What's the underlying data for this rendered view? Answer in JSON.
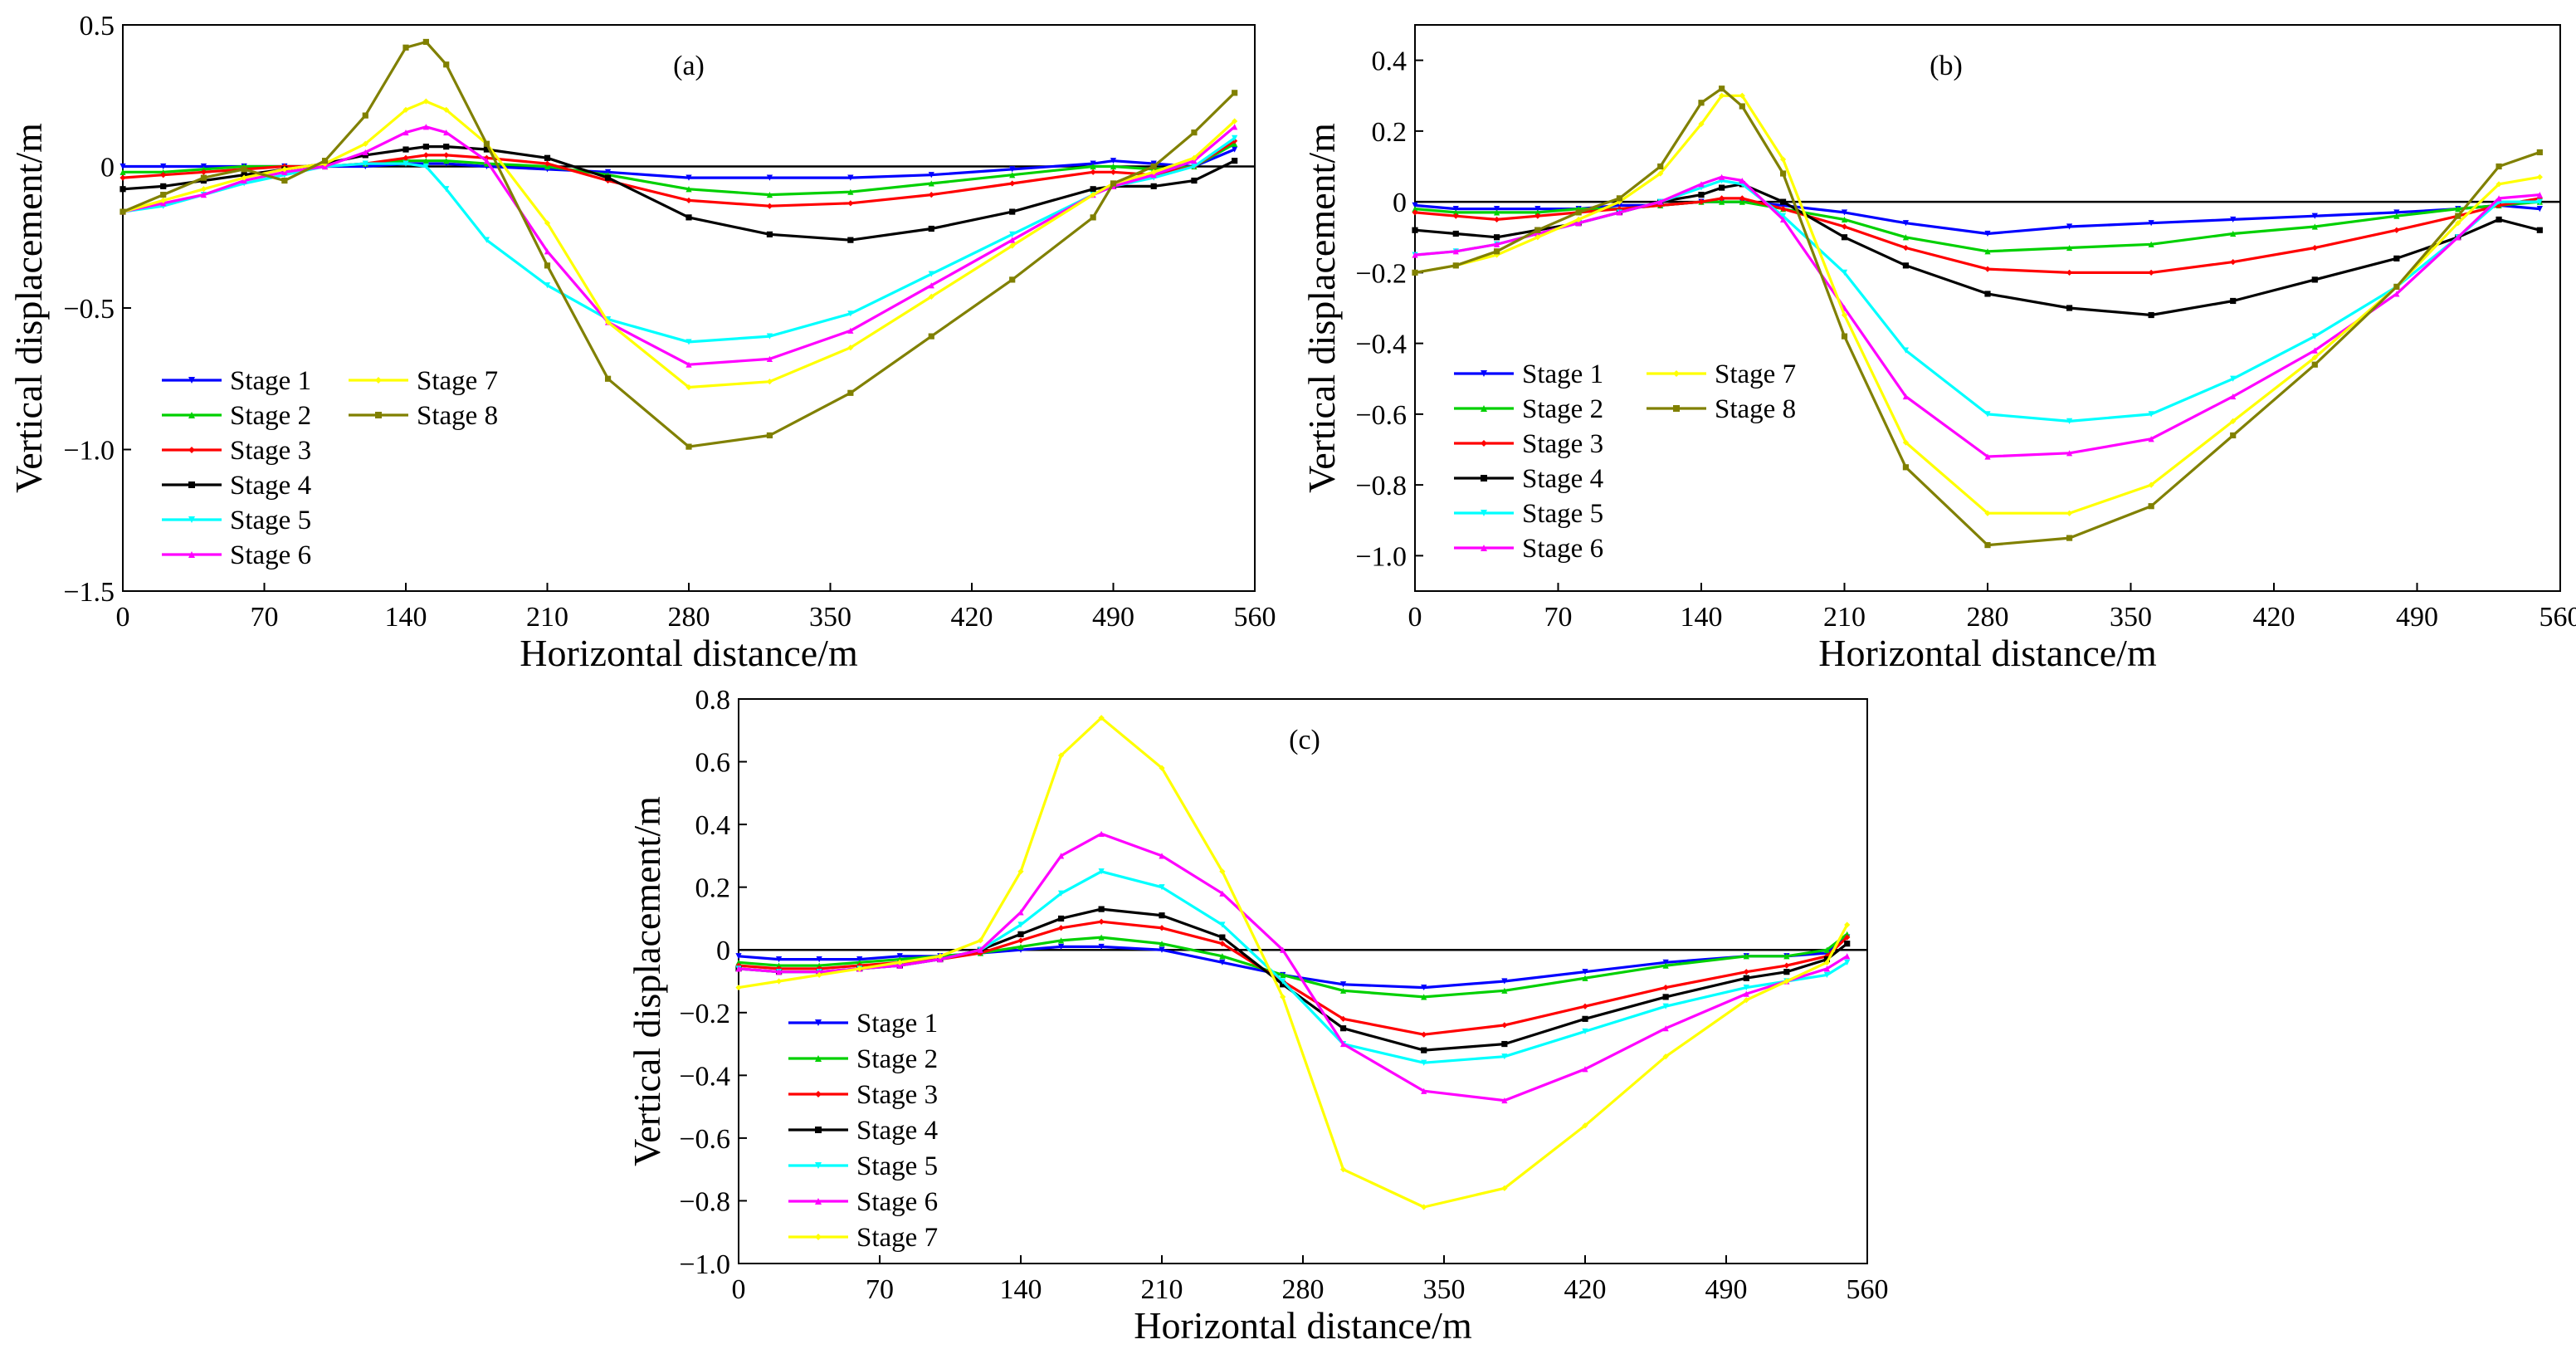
{
  "chart_data": [
    {
      "type": "line",
      "panel": "(a)",
      "xlabel": "Horizontal distance/m",
      "ylabel": "Vertical displacement/m",
      "xlim": [
        0,
        560
      ],
      "ylim": [
        -1.5,
        0.5
      ],
      "xticks": [
        0,
        70,
        140,
        210,
        280,
        350,
        420,
        490,
        560
      ],
      "yticks": [
        0.5,
        0,
        -0.5,
        -1.0,
        -1.5
      ],
      "ytick_labels": [
        "0.5",
        "0",
        "−0.5",
        "−1.0",
        "−1.5"
      ],
      "legend_columns": 2,
      "legend_position": "bottom-left",
      "x": [
        0,
        20,
        40,
        60,
        80,
        100,
        120,
        140,
        150,
        160,
        180,
        210,
        240,
        280,
        320,
        360,
        400,
        440,
        480,
        490,
        510,
        530,
        550
      ],
      "series": [
        {
          "name": "Stage 1",
          "color": "#0000ff",
          "values": [
            0.0,
            0.0,
            0.0,
            0.0,
            0.0,
            0.0,
            0.0,
            0.01,
            0.01,
            0.01,
            0.0,
            -0.01,
            -0.02,
            -0.04,
            -0.04,
            -0.04,
            -0.03,
            -0.01,
            0.01,
            0.02,
            0.01,
            0.0,
            0.06
          ]
        },
        {
          "name": "Stage 2",
          "color": "#00d000",
          "values": [
            -0.02,
            -0.02,
            -0.01,
            0.0,
            0.0,
            0.0,
            0.01,
            0.02,
            0.02,
            0.02,
            0.01,
            0.0,
            -0.03,
            -0.08,
            -0.1,
            -0.09,
            -0.06,
            -0.03,
            0.0,
            0.0,
            -0.01,
            0.0,
            0.08
          ]
        },
        {
          "name": "Stage 3",
          "color": "#ff0000",
          "values": [
            -0.04,
            -0.03,
            -0.02,
            -0.01,
            0.0,
            0.0,
            0.01,
            0.03,
            0.04,
            0.04,
            0.03,
            0.01,
            -0.05,
            -0.12,
            -0.14,
            -0.13,
            -0.1,
            -0.06,
            -0.02,
            -0.02,
            -0.03,
            0.0,
            0.09
          ]
        },
        {
          "name": "Stage 4",
          "color": "#000000",
          "values": [
            -0.08,
            -0.07,
            -0.05,
            -0.03,
            -0.01,
            0.01,
            0.04,
            0.06,
            0.07,
            0.07,
            0.06,
            0.03,
            -0.04,
            -0.18,
            -0.24,
            -0.26,
            -0.22,
            -0.16,
            -0.08,
            -0.07,
            -0.07,
            -0.05,
            0.02
          ]
        },
        {
          "name": "Stage 5",
          "color": "#00ffff",
          "values": [
            -0.16,
            -0.14,
            -0.1,
            -0.06,
            -0.03,
            0.0,
            0.01,
            0.01,
            0.0,
            -0.08,
            -0.26,
            -0.42,
            -0.54,
            -0.62,
            -0.6,
            -0.52,
            -0.38,
            -0.24,
            -0.1,
            -0.07,
            -0.04,
            0.0,
            0.1
          ]
        },
        {
          "name": "Stage 6",
          "color": "#ff00ff",
          "values": [
            -0.16,
            -0.13,
            -0.1,
            -0.05,
            -0.02,
            0.0,
            0.05,
            0.12,
            0.14,
            0.12,
            0.02,
            -0.3,
            -0.55,
            -0.7,
            -0.68,
            -0.58,
            -0.42,
            -0.26,
            -0.1,
            -0.07,
            -0.03,
            0.02,
            0.14
          ]
        },
        {
          "name": "Stage 7",
          "color": "#ffff00",
          "values": [
            -0.16,
            -0.12,
            -0.08,
            -0.04,
            -0.01,
            0.01,
            0.08,
            0.2,
            0.23,
            0.2,
            0.08,
            -0.2,
            -0.55,
            -0.78,
            -0.76,
            -0.64,
            -0.46,
            -0.28,
            -0.1,
            -0.06,
            -0.02,
            0.03,
            0.16
          ]
        },
        {
          "name": "Stage 8",
          "color": "#808000",
          "values": [
            -0.16,
            -0.1,
            -0.04,
            -0.01,
            -0.05,
            0.02,
            0.18,
            0.42,
            0.44,
            0.36,
            0.08,
            -0.35,
            -0.75,
            -0.99,
            -0.95,
            -0.8,
            -0.6,
            -0.4,
            -0.18,
            -0.06,
            0.0,
            0.12,
            0.26
          ]
        }
      ]
    },
    {
      "type": "line",
      "panel": "(b)",
      "xlabel": "Horizontal distance/m",
      "ylabel": "Vertical displacement/m",
      "xlim": [
        0,
        560
      ],
      "ylim": [
        -1.1,
        0.5
      ],
      "xticks": [
        0,
        70,
        140,
        210,
        280,
        350,
        420,
        490,
        560
      ],
      "yticks": [
        0.4,
        0.2,
        0,
        -0.2,
        -0.4,
        -0.6,
        -0.8,
        -1.0
      ],
      "ytick_labels": [
        "0.4",
        "0.2",
        "0",
        "−0.2",
        "−0.4",
        "−0.6",
        "−0.8",
        "−1.0"
      ],
      "legend_columns": 2,
      "legend_position": "bottom-left",
      "x": [
        0,
        20,
        40,
        60,
        80,
        100,
        120,
        140,
        150,
        160,
        180,
        210,
        240,
        280,
        320,
        360,
        400,
        440,
        480,
        510,
        530,
        550
      ],
      "series": [
        {
          "name": "Stage 1",
          "color": "#0000ff",
          "values": [
            -0.01,
            -0.02,
            -0.02,
            -0.02,
            -0.02,
            -0.01,
            -0.01,
            0.0,
            0.0,
            0.0,
            -0.01,
            -0.03,
            -0.06,
            -0.09,
            -0.07,
            -0.06,
            -0.05,
            -0.04,
            -0.03,
            -0.02,
            -0.01,
            -0.02
          ]
        },
        {
          "name": "Stage 2",
          "color": "#00d000",
          "values": [
            -0.02,
            -0.03,
            -0.03,
            -0.03,
            -0.02,
            -0.02,
            -0.01,
            0.0,
            0.0,
            0.0,
            -0.02,
            -0.05,
            -0.1,
            -0.14,
            -0.13,
            -0.12,
            -0.09,
            -0.07,
            -0.04,
            -0.02,
            -0.01,
            0.0
          ]
        },
        {
          "name": "Stage 3",
          "color": "#ff0000",
          "values": [
            -0.03,
            -0.04,
            -0.05,
            -0.04,
            -0.03,
            -0.02,
            -0.01,
            0.0,
            0.01,
            0.01,
            -0.02,
            -0.07,
            -0.13,
            -0.19,
            -0.2,
            -0.2,
            -0.17,
            -0.13,
            -0.08,
            -0.04,
            -0.01,
            0.01
          ]
        },
        {
          "name": "Stage 4",
          "color": "#000000",
          "values": [
            -0.08,
            -0.09,
            -0.1,
            -0.08,
            -0.06,
            -0.03,
            0.0,
            0.02,
            0.04,
            0.05,
            0.0,
            -0.1,
            -0.18,
            -0.26,
            -0.3,
            -0.32,
            -0.28,
            -0.22,
            -0.16,
            -0.1,
            -0.05,
            -0.08
          ]
        },
        {
          "name": "Stage 5",
          "color": "#00ffff",
          "values": [
            -0.15,
            -0.14,
            -0.12,
            -0.09,
            -0.06,
            -0.03,
            0.0,
            0.04,
            0.06,
            0.05,
            -0.04,
            -0.2,
            -0.42,
            -0.6,
            -0.62,
            -0.6,
            -0.5,
            -0.38,
            -0.24,
            -0.1,
            0.0,
            0.0
          ]
        },
        {
          "name": "Stage 6",
          "color": "#ff00ff",
          "values": [
            -0.15,
            -0.14,
            -0.12,
            -0.09,
            -0.06,
            -0.03,
            0.0,
            0.05,
            0.07,
            0.06,
            -0.05,
            -0.3,
            -0.55,
            -0.72,
            -0.71,
            -0.67,
            -0.55,
            -0.42,
            -0.26,
            -0.1,
            0.01,
            0.02
          ]
        },
        {
          "name": "Stage 7",
          "color": "#ffff00",
          "values": [
            -0.2,
            -0.18,
            -0.15,
            -0.1,
            -0.05,
            0.0,
            0.08,
            0.22,
            0.3,
            0.3,
            0.12,
            -0.32,
            -0.68,
            -0.88,
            -0.88,
            -0.8,
            -0.62,
            -0.44,
            -0.24,
            -0.06,
            0.05,
            0.07
          ]
        },
        {
          "name": "Stage 8",
          "color": "#808000",
          "values": [
            -0.2,
            -0.18,
            -0.14,
            -0.08,
            -0.03,
            0.01,
            0.1,
            0.28,
            0.32,
            0.27,
            0.08,
            -0.38,
            -0.75,
            -0.97,
            -0.95,
            -0.86,
            -0.66,
            -0.46,
            -0.24,
            -0.04,
            0.1,
            0.14
          ]
        }
      ]
    },
    {
      "type": "line",
      "panel": "(c)",
      "xlabel": "Horizontal distance/m",
      "ylabel": "Vertical displacement/m",
      "xlim": [
        0,
        560
      ],
      "ylim": [
        -1.0,
        0.8
      ],
      "xticks": [
        0,
        70,
        140,
        210,
        280,
        350,
        420,
        490,
        560
      ],
      "yticks": [
        0.8,
        0.6,
        0.4,
        0.2,
        0,
        -0.2,
        -0.4,
        -0.6,
        -0.8,
        -1.0
      ],
      "ytick_labels": [
        "0.8",
        "0.6",
        "0.4",
        "0.2",
        "0",
        "−0.2",
        "−0.4",
        "−0.6",
        "−0.8",
        "−1.0"
      ],
      "legend_columns": 1,
      "legend_position": "bottom-left",
      "x": [
        0,
        20,
        40,
        60,
        80,
        100,
        120,
        140,
        160,
        180,
        210,
        240,
        270,
        300,
        340,
        380,
        420,
        460,
        500,
        520,
        540,
        550
      ],
      "series": [
        {
          "name": "Stage 1",
          "color": "#0000ff",
          "values": [
            -0.02,
            -0.03,
            -0.03,
            -0.03,
            -0.02,
            -0.02,
            -0.01,
            0.0,
            0.01,
            0.01,
            0.0,
            -0.04,
            -0.08,
            -0.11,
            -0.12,
            -0.1,
            -0.07,
            -0.04,
            -0.02,
            -0.02,
            -0.01,
            0.04
          ]
        },
        {
          "name": "Stage 2",
          "color": "#00d000",
          "values": [
            -0.04,
            -0.05,
            -0.05,
            -0.04,
            -0.03,
            -0.02,
            -0.01,
            0.01,
            0.03,
            0.04,
            0.02,
            -0.02,
            -0.08,
            -0.13,
            -0.15,
            -0.13,
            -0.09,
            -0.05,
            -0.02,
            -0.02,
            0.0,
            0.05
          ]
        },
        {
          "name": "Stage 3",
          "color": "#ff0000",
          "values": [
            -0.05,
            -0.06,
            -0.06,
            -0.05,
            -0.04,
            -0.03,
            -0.01,
            0.03,
            0.07,
            0.09,
            0.07,
            0.02,
            -0.1,
            -0.22,
            -0.27,
            -0.24,
            -0.18,
            -0.12,
            -0.07,
            -0.05,
            -0.02,
            0.04
          ]
        },
        {
          "name": "Stage 4",
          "color": "#000000",
          "values": [
            -0.06,
            -0.07,
            -0.07,
            -0.06,
            -0.05,
            -0.03,
            0.0,
            0.05,
            0.1,
            0.13,
            0.11,
            0.04,
            -0.11,
            -0.25,
            -0.32,
            -0.3,
            -0.22,
            -0.15,
            -0.09,
            -0.07,
            -0.03,
            0.02
          ]
        },
        {
          "name": "Stage 5",
          "color": "#00ffff",
          "values": [
            -0.06,
            -0.07,
            -0.07,
            -0.06,
            -0.05,
            -0.03,
            0.0,
            0.08,
            0.18,
            0.25,
            0.2,
            0.08,
            -0.1,
            -0.3,
            -0.36,
            -0.34,
            -0.26,
            -0.18,
            -0.12,
            -0.1,
            -0.08,
            -0.04
          ]
        },
        {
          "name": "Stage 6",
          "color": "#ff00ff",
          "values": [
            -0.06,
            -0.07,
            -0.07,
            -0.06,
            -0.05,
            -0.03,
            0.0,
            0.12,
            0.3,
            0.37,
            0.3,
            0.18,
            0.0,
            -0.3,
            -0.45,
            -0.48,
            -0.38,
            -0.25,
            -0.14,
            -0.1,
            -0.06,
            -0.02
          ]
        },
        {
          "name": "Stage 7",
          "color": "#ffff00",
          "values": [
            -0.12,
            -0.1,
            -0.08,
            -0.06,
            -0.04,
            -0.02,
            0.03,
            0.25,
            0.62,
            0.74,
            0.58,
            0.25,
            -0.15,
            -0.7,
            -0.82,
            -0.76,
            -0.56,
            -0.34,
            -0.16,
            -0.1,
            -0.04,
            0.08
          ]
        }
      ]
    }
  ]
}
